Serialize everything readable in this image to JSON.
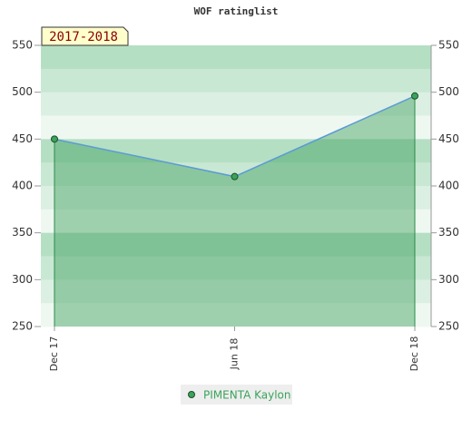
{
  "chart_data": {
    "type": "area",
    "title": "WOF ratinglist",
    "period": "2017-2018",
    "categories": [
      "Dec 17",
      "Jun 18",
      "Dec 18"
    ],
    "series": [
      {
        "name": "PIMENTA Kaylon",
        "color": "#5b9bd5",
        "marker_color": "#3aa35c",
        "fill": "#3f9f5e",
        "values": [
          450,
          410,
          496
        ]
      }
    ],
    "ylim": [
      250,
      550
    ],
    "yticks": [
      250,
      300,
      350,
      400,
      450,
      500,
      550
    ],
    "y2lim": [
      250,
      550
    ],
    "y2ticks": [
      250,
      300,
      350,
      400,
      450,
      500,
      550
    ],
    "legend": "bottom"
  }
}
